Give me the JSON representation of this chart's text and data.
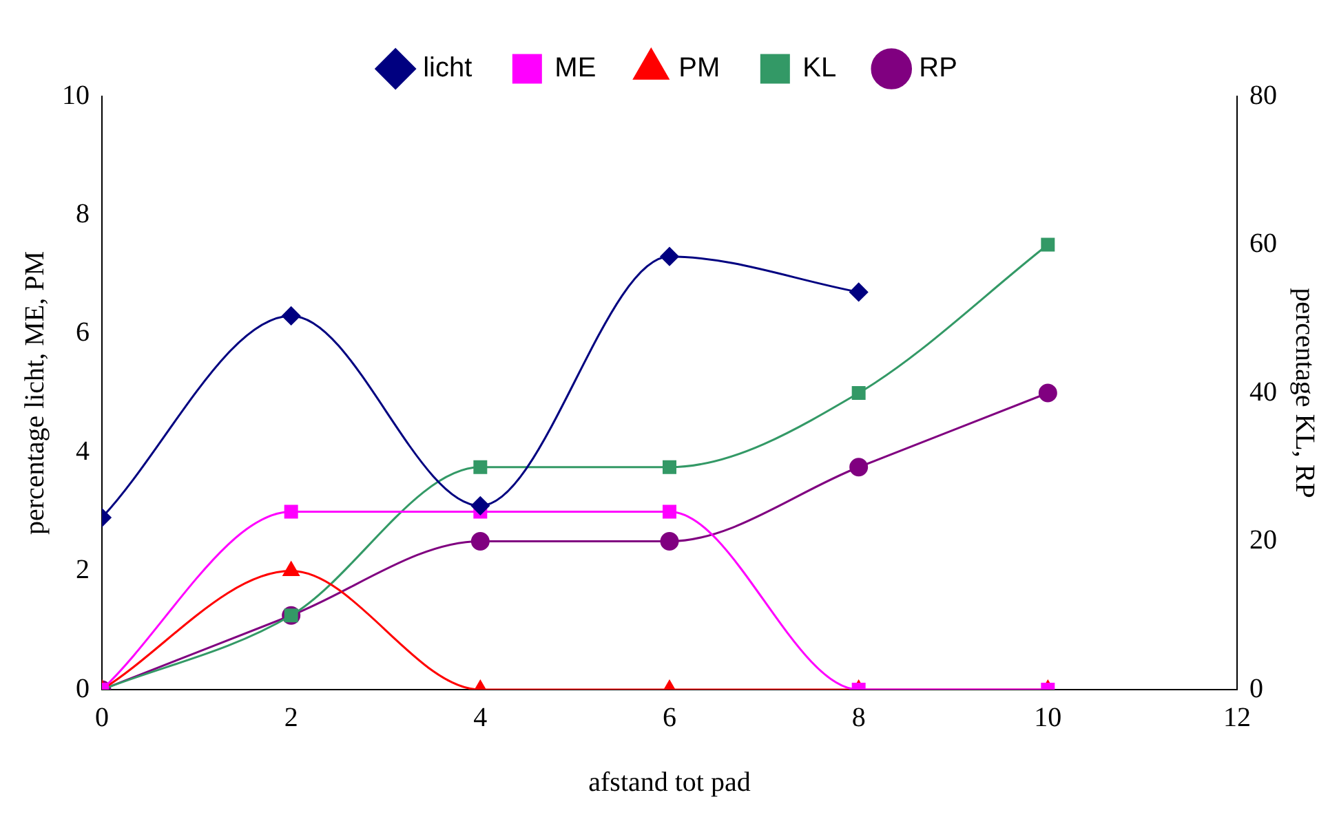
{
  "chart_data": {
    "type": "line",
    "xlabel": "afstand tot pad",
    "ylabel": "percentage licht, ME, PM",
    "y2label": "percentage KL, RP",
    "x": [
      0,
      2,
      4,
      6,
      8,
      10
    ],
    "xlim": [
      0,
      12
    ],
    "xticks": [
      0,
      2,
      4,
      6,
      8,
      10,
      12
    ],
    "ylim": [
      0,
      10
    ],
    "yticks": [
      0,
      2,
      4,
      6,
      8,
      10
    ],
    "y2lim": [
      0,
      80
    ],
    "y2ticks": [
      0,
      20,
      40,
      60,
      80
    ],
    "grid": false,
    "legend": "top",
    "series": [
      {
        "name": "licht",
        "color": "#000080",
        "marker": "diamond",
        "x": [
          0,
          2,
          4,
          6,
          8
        ],
        "values": [
          2.9,
          6.3,
          3.1,
          7.3,
          6.7
        ]
      },
      {
        "name": "ME",
        "color": "#ff00ff",
        "marker": "square",
        "values": [
          0,
          3,
          3,
          3,
          0,
          0
        ]
      },
      {
        "name": "PM",
        "color": "#ff0000",
        "marker": "triangle",
        "values": [
          0,
          2,
          0,
          0,
          0,
          0
        ]
      },
      {
        "name": "KL",
        "color": "#339966",
        "marker": "square",
        "axis": "y2",
        "values": [
          0,
          10,
          30,
          30,
          40,
          60
        ]
      },
      {
        "name": "RP",
        "color": "#800080",
        "marker": "circle",
        "axis": "y2",
        "values": [
          0,
          10,
          20,
          20,
          30,
          40
        ]
      }
    ]
  }
}
